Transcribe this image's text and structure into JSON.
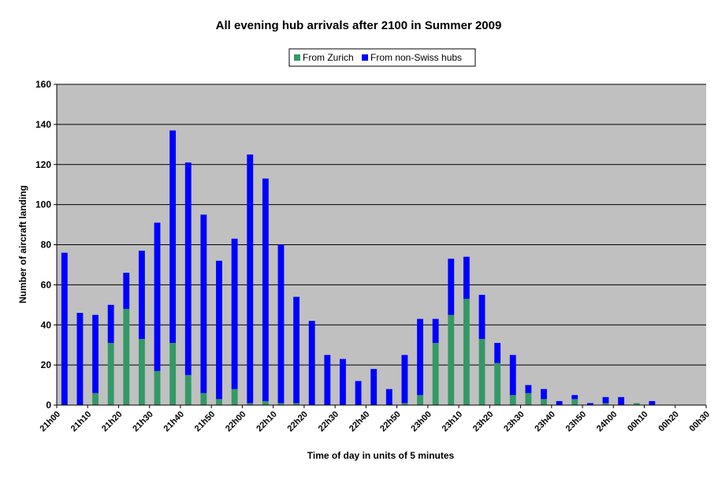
{
  "chart_data": {
    "type": "bar",
    "stacked": true,
    "title": "All evening hub arrivals after 2100 in Summer 2009",
    "xlabel": "Time of day in units of 5 minutes",
    "ylabel": "Number of aircraft landing",
    "ylim": [
      0,
      160
    ],
    "yticks": [
      0,
      20,
      40,
      60,
      80,
      100,
      120,
      140,
      160
    ],
    "grid": true,
    "legend_position": "top",
    "plot_background": "#c0c0c0",
    "x_tick_labels": [
      "21h00",
      "21h10",
      "21h20",
      "21h30",
      "21h40",
      "21h50",
      "22h00",
      "22h10",
      "22h20",
      "22h30",
      "22h40",
      "22h50",
      "23h00",
      "23h10",
      "23h20",
      "23h30",
      "23h40",
      "23h50",
      "24h00",
      "00h10",
      "00h20",
      "00h30"
    ],
    "categories": [
      "21h00",
      "21h05",
      "21h10",
      "21h15",
      "21h20",
      "21h25",
      "21h30",
      "21h35",
      "21h40",
      "21h45",
      "21h50",
      "21h55",
      "22h00",
      "22h05",
      "22h10",
      "22h15",
      "22h20",
      "22h25",
      "22h30",
      "22h35",
      "22h40",
      "22h45",
      "22h50",
      "22h55",
      "23h00",
      "23h05",
      "23h10",
      "23h15",
      "23h20",
      "23h25",
      "23h30",
      "23h35",
      "23h40",
      "23h45",
      "23h50",
      "23h55",
      "24h00",
      "00h05",
      "00h10",
      "00h15",
      "00h20",
      "00h25"
    ],
    "series": [
      {
        "name": "From Zurich",
        "color": "#339966",
        "values": [
          0,
          0,
          6,
          31,
          48,
          33,
          17,
          31,
          15,
          6,
          3,
          8,
          1,
          2,
          1,
          1,
          0,
          0,
          0,
          0,
          0,
          0,
          1,
          5,
          31,
          45,
          53,
          33,
          21,
          5,
          6,
          3,
          0,
          3,
          0,
          1,
          0,
          1,
          0,
          0,
          0,
          0
        ]
      },
      {
        "name": "From non-Swiss hubs",
        "color": "#0000ff",
        "values": [
          76,
          46,
          39,
          19,
          18,
          44,
          74,
          106,
          106,
          89,
          69,
          75,
          124,
          111,
          79,
          53,
          42,
          25,
          23,
          12,
          18,
          8,
          24,
          38,
          12,
          28,
          21,
          22,
          10,
          20,
          4,
          5,
          2,
          2,
          1,
          3,
          4,
          0,
          2,
          0,
          0,
          0
        ]
      }
    ]
  }
}
